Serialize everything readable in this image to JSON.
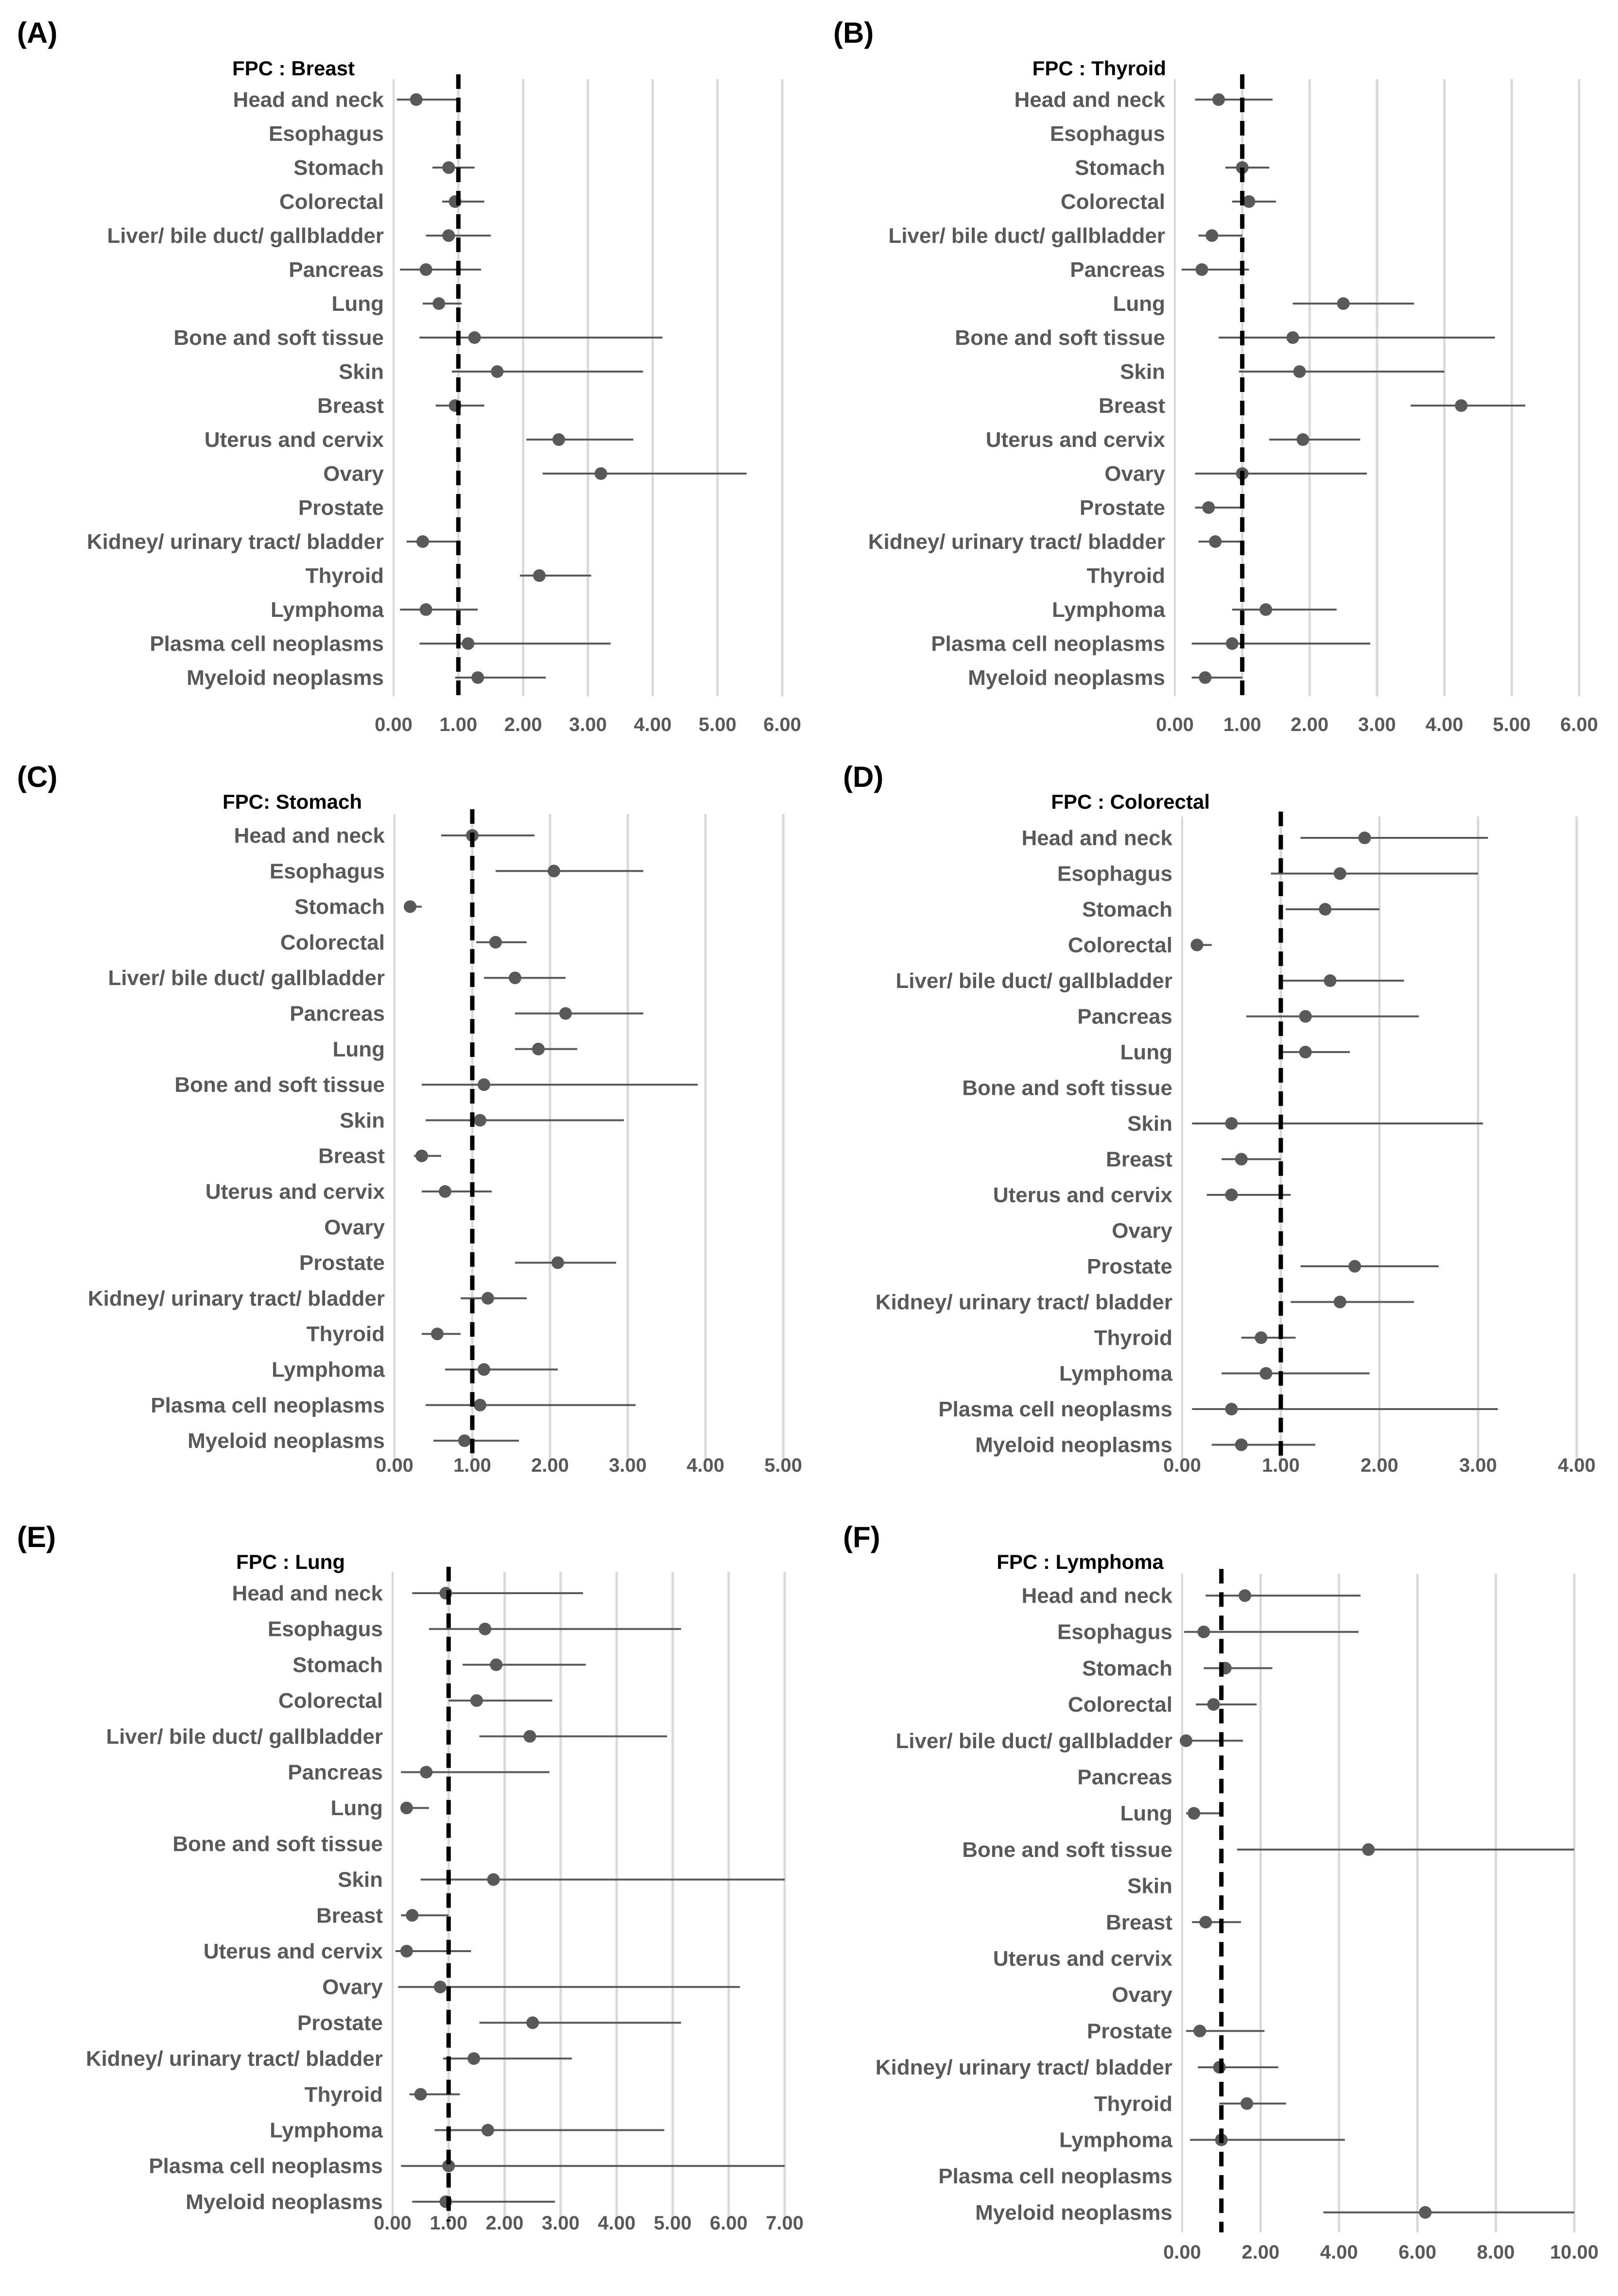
{
  "categories": [
    "Head and neck",
    "Esophagus",
    "Stomach",
    "Colorectal",
    "Liver/ bile duct/ gallbladder",
    "Pancreas",
    "Lung",
    "Bone and soft tissue",
    "Skin",
    "Breast",
    "Uterus and cervix",
    "Ovary",
    "Prostate",
    "Kidney/ urinary tract/ bladder",
    "Thyroid",
    "Lymphoma",
    "Plasma cell neoplasms",
    "Myeloid neoplasms"
  ],
  "chart_data": [
    {
      "type": "forest",
      "panel": "(A)",
      "title": "FPC : Breast",
      "xlim": [
        0,
        6
      ],
      "ticks": [
        0,
        1,
        2,
        3,
        4,
        5,
        6
      ],
      "tick_labels": [
        "0.00",
        "1.00",
        "2.00",
        "3.00",
        "4.00",
        "5.00",
        "6.00"
      ],
      "reference": 1.0,
      "points": [
        {
          "label": "Head and neck",
          "est": 0.35,
          "lo": 0.05,
          "hi": 1.0
        },
        {
          "label": "Esophagus",
          "est": null,
          "lo": null,
          "hi": null
        },
        {
          "label": "Stomach",
          "est": 0.85,
          "lo": 0.6,
          "hi": 1.25
        },
        {
          "label": "Colorectal",
          "est": 0.95,
          "lo": 0.75,
          "hi": 1.4
        },
        {
          "label": "Liver/ bile duct/ gallbladder",
          "est": 0.85,
          "lo": 0.5,
          "hi": 1.5
        },
        {
          "label": "Pancreas",
          "est": 0.5,
          "lo": 0.1,
          "hi": 1.35
        },
        {
          "label": "Lung",
          "est": 0.7,
          "lo": 0.45,
          "hi": 1.05
        },
        {
          "label": "Bone and soft tissue",
          "est": 1.25,
          "lo": 0.4,
          "hi": 4.15
        },
        {
          "label": "Skin",
          "est": 1.6,
          "lo": 0.9,
          "hi": 3.85
        },
        {
          "label": "Breast",
          "est": 0.95,
          "lo": 0.65,
          "hi": 1.4
        },
        {
          "label": "Uterus and cervix",
          "est": 2.55,
          "lo": 2.05,
          "hi": 3.7
        },
        {
          "label": "Ovary",
          "est": 3.2,
          "lo": 2.3,
          "hi": 5.45
        },
        {
          "label": "Prostate",
          "est": null,
          "lo": null,
          "hi": null
        },
        {
          "label": "Kidney/ urinary tract/ bladder",
          "est": 0.45,
          "lo": 0.2,
          "hi": 1.0
        },
        {
          "label": "Thyroid",
          "est": 2.25,
          "lo": 1.95,
          "hi": 3.05
        },
        {
          "label": "Lymphoma",
          "est": 0.5,
          "lo": 0.1,
          "hi": 1.3
        },
        {
          "label": "Plasma cell neoplasms",
          "est": 1.15,
          "lo": 0.4,
          "hi": 3.35
        },
        {
          "label": "Myeloid neoplasms",
          "est": 1.3,
          "lo": 0.95,
          "hi": 2.35
        }
      ]
    },
    {
      "type": "forest",
      "panel": "(B)",
      "title": "FPC : Thyroid",
      "xlim": [
        0,
        6
      ],
      "ticks": [
        0,
        1,
        2,
        3,
        4,
        5,
        6
      ],
      "tick_labels": [
        "0.00",
        "1.00",
        "2.00",
        "3.00",
        "4.00",
        "5.00",
        "6.00"
      ],
      "reference": 1.0,
      "points": [
        {
          "label": "Head and neck",
          "est": 0.65,
          "lo": 0.3,
          "hi": 1.45
        },
        {
          "label": "Esophagus",
          "est": null,
          "lo": null,
          "hi": null
        },
        {
          "label": "Stomach",
          "est": 1.0,
          "lo": 0.75,
          "hi": 1.4
        },
        {
          "label": "Colorectal",
          "est": 1.1,
          "lo": 0.85,
          "hi": 1.5
        },
        {
          "label": "Liver/ bile duct/ gallbladder",
          "est": 0.55,
          "lo": 0.35,
          "hi": 1.0
        },
        {
          "label": "Pancreas",
          "est": 0.4,
          "lo": 0.1,
          "hi": 1.1
        },
        {
          "label": "Lung",
          "est": 2.5,
          "lo": 1.75,
          "hi": 3.55
        },
        {
          "label": "Bone and soft tissue",
          "est": 1.75,
          "lo": 0.65,
          "hi": 4.75
        },
        {
          "label": "Skin",
          "est": 1.85,
          "lo": 0.95,
          "hi": 4.0
        },
        {
          "label": "Breast",
          "est": 4.25,
          "lo": 3.5,
          "hi": 5.2
        },
        {
          "label": "Uterus and cervix",
          "est": 1.9,
          "lo": 1.4,
          "hi": 2.75
        },
        {
          "label": "Ovary",
          "est": 1.0,
          "lo": 0.3,
          "hi": 2.85
        },
        {
          "label": "Prostate",
          "est": 0.5,
          "lo": 0.3,
          "hi": 1.0
        },
        {
          "label": "Kidney/ urinary tract/ bladder",
          "est": 0.6,
          "lo": 0.35,
          "hi": 1.0
        },
        {
          "label": "Thyroid",
          "est": null,
          "lo": null,
          "hi": null
        },
        {
          "label": "Lymphoma",
          "est": 1.35,
          "lo": 0.85,
          "hi": 2.4
        },
        {
          "label": "Plasma cell neoplasms",
          "est": 0.85,
          "lo": 0.25,
          "hi": 2.9
        },
        {
          "label": "Myeloid neoplasms",
          "est": 0.45,
          "lo": 0.25,
          "hi": 1.0
        }
      ]
    },
    {
      "type": "forest",
      "panel": "(C)",
      "title": "FPC: Stomach",
      "xlim": [
        0,
        5
      ],
      "ticks": [
        0,
        1,
        2,
        3,
        4,
        5
      ],
      "tick_labels": [
        "0.00",
        "1.00",
        "2.00",
        "3.00",
        "4.00",
        "5.00"
      ],
      "reference": 1.0,
      "points": [
        {
          "label": "Head and neck",
          "est": 1.0,
          "lo": 0.6,
          "hi": 1.8
        },
        {
          "label": "Esophagus",
          "est": 2.05,
          "lo": 1.3,
          "hi": 3.2
        },
        {
          "label": "Stomach",
          "est": 0.2,
          "lo": 0.15,
          "hi": 0.35
        },
        {
          "label": "Colorectal",
          "est": 1.3,
          "lo": 1.05,
          "hi": 1.7
        },
        {
          "label": "Liver/ bile duct/ gallbladder",
          "est": 1.55,
          "lo": 1.15,
          "hi": 2.2
        },
        {
          "label": "Pancreas",
          "est": 2.2,
          "lo": 1.55,
          "hi": 3.2
        },
        {
          "label": "Lung",
          "est": 1.85,
          "lo": 1.55,
          "hi": 2.35
        },
        {
          "label": "Bone and soft tissue",
          "est": 1.15,
          "lo": 0.35,
          "hi": 3.9
        },
        {
          "label": "Skin",
          "est": 1.1,
          "lo": 0.4,
          "hi": 2.95
        },
        {
          "label": "Breast",
          "est": 0.35,
          "lo": 0.25,
          "hi": 0.6
        },
        {
          "label": "Uterus and cervix",
          "est": 0.65,
          "lo": 0.35,
          "hi": 1.25
        },
        {
          "label": "Ovary",
          "est": null,
          "lo": null,
          "hi": null
        },
        {
          "label": "Prostate",
          "est": 2.1,
          "lo": 1.55,
          "hi": 2.85
        },
        {
          "label": "Kidney/ urinary tract/ bladder",
          "est": 1.2,
          "lo": 0.85,
          "hi": 1.7
        },
        {
          "label": "Thyroid",
          "est": 0.55,
          "lo": 0.35,
          "hi": 0.85
        },
        {
          "label": "Lymphoma",
          "est": 1.15,
          "lo": 0.65,
          "hi": 2.1
        },
        {
          "label": "Plasma cell neoplasms",
          "est": 1.1,
          "lo": 0.4,
          "hi": 3.1
        },
        {
          "label": "Myeloid neoplasms",
          "est": 0.9,
          "lo": 0.5,
          "hi": 1.6
        }
      ]
    },
    {
      "type": "forest",
      "panel": "(D)",
      "title": "FPC : Colorectal",
      "xlim": [
        0,
        4
      ],
      "ticks": [
        0,
        1,
        2,
        3,
        4
      ],
      "tick_labels": [
        "0.00",
        "1.00",
        "2.00",
        "3.00",
        "4.00"
      ],
      "reference": 1.0,
      "points": [
        {
          "label": "Head and neck",
          "est": 1.85,
          "lo": 1.2,
          "hi": 3.1
        },
        {
          "label": "Esophagus",
          "est": 1.6,
          "lo": 0.9,
          "hi": 3.0
        },
        {
          "label": "Stomach",
          "est": 1.45,
          "lo": 1.05,
          "hi": 2.0
        },
        {
          "label": "Colorectal",
          "est": 0.15,
          "lo": 0.1,
          "hi": 0.3
        },
        {
          "label": "Liver/ bile duct/ gallbladder",
          "est": 1.5,
          "lo": 1.0,
          "hi": 2.25
        },
        {
          "label": "Pancreas",
          "est": 1.25,
          "lo": 0.65,
          "hi": 2.4
        },
        {
          "label": "Lung",
          "est": 1.25,
          "lo": 1.0,
          "hi": 1.7
        },
        {
          "label": "Bone and soft tissue",
          "est": null,
          "lo": null,
          "hi": null
        },
        {
          "label": "Skin",
          "est": 0.5,
          "lo": 0.1,
          "hi": 3.05
        },
        {
          "label": "Breast",
          "est": 0.6,
          "lo": 0.4,
          "hi": 1.0
        },
        {
          "label": "Uterus and cervix",
          "est": 0.5,
          "lo": 0.25,
          "hi": 1.1
        },
        {
          "label": "Ovary",
          "est": null,
          "lo": null,
          "hi": null
        },
        {
          "label": "Prostate",
          "est": 1.75,
          "lo": 1.2,
          "hi": 2.6
        },
        {
          "label": "Kidney/ urinary tract/ bladder",
          "est": 1.6,
          "lo": 1.1,
          "hi": 2.35
        },
        {
          "label": "Thyroid",
          "est": 0.8,
          "lo": 0.6,
          "hi": 1.15
        },
        {
          "label": "Lymphoma",
          "est": 0.85,
          "lo": 0.4,
          "hi": 1.9
        },
        {
          "label": "Plasma cell neoplasms",
          "est": 0.5,
          "lo": 0.1,
          "hi": 3.2
        },
        {
          "label": "Myeloid neoplasms",
          "est": 0.6,
          "lo": 0.3,
          "hi": 1.35
        }
      ]
    },
    {
      "type": "forest",
      "panel": "(E)",
      "title": "FPC : Lung",
      "xlim": [
        0,
        7
      ],
      "ticks": [
        0,
        1,
        2,
        3,
        4,
        5,
        6,
        7
      ],
      "tick_labels": [
        "0.00",
        "1.00",
        "2.00",
        "3.00",
        "4.00",
        "5.00",
        "6.00",
        "7.00"
      ],
      "reference": 1.0,
      "points": [
        {
          "label": "Head and neck",
          "est": 0.95,
          "lo": 0.35,
          "hi": 3.4
        },
        {
          "label": "Esophagus",
          "est": 1.65,
          "lo": 0.65,
          "hi": 5.15
        },
        {
          "label": "Stomach",
          "est": 1.85,
          "lo": 1.25,
          "hi": 3.45
        },
        {
          "label": "Colorectal",
          "est": 1.5,
          "lo": 1.0,
          "hi": 2.85
        },
        {
          "label": "Liver/ bile duct/ gallbladder",
          "est": 2.45,
          "lo": 1.55,
          "hi": 4.9
        },
        {
          "label": "Pancreas",
          "est": 0.6,
          "lo": 0.15,
          "hi": 2.8
        },
        {
          "label": "Lung",
          "est": 0.25,
          "lo": 0.15,
          "hi": 0.65
        },
        {
          "label": "Bone and soft tissue",
          "est": null,
          "lo": null,
          "hi": null
        },
        {
          "label": "Skin",
          "est": 1.8,
          "lo": 0.5,
          "hi": 7.0
        },
        {
          "label": "Breast",
          "est": 0.35,
          "lo": 0.15,
          "hi": 1.0
        },
        {
          "label": "Uterus and cervix",
          "est": 0.25,
          "lo": 0.05,
          "hi": 1.4
        },
        {
          "label": "Ovary",
          "est": 0.85,
          "lo": 0.1,
          "hi": 6.2
        },
        {
          "label": "Prostate",
          "est": 2.5,
          "lo": 1.55,
          "hi": 5.15
        },
        {
          "label": "Kidney/ urinary tract/ bladder",
          "est": 1.45,
          "lo": 0.9,
          "hi": 3.2
        },
        {
          "label": "Thyroid",
          "est": 0.5,
          "lo": 0.3,
          "hi": 1.2
        },
        {
          "label": "Lymphoma",
          "est": 1.7,
          "lo": 0.75,
          "hi": 4.85
        },
        {
          "label": "Plasma cell neoplasms",
          "est": 1.0,
          "lo": 0.15,
          "hi": 7.0
        },
        {
          "label": "Myeloid neoplasms",
          "est": 0.95,
          "lo": 0.35,
          "hi": 2.9
        }
      ]
    },
    {
      "type": "forest",
      "panel": "(F)",
      "title": "FPC : Lymphoma",
      "xlim": [
        0,
        10
      ],
      "ticks": [
        0,
        2,
        4,
        6,
        8,
        10
      ],
      "tick_labels": [
        "0.00",
        "2.00",
        "4.00",
        "6.00",
        "8.00",
        "10.00"
      ],
      "reference": 1.0,
      "points": [
        {
          "label": "Head and neck",
          "est": 1.6,
          "lo": 0.6,
          "hi": 4.55
        },
        {
          "label": "Esophagus",
          "est": 0.55,
          "lo": 0.05,
          "hi": 4.5
        },
        {
          "label": "Stomach",
          "est": 1.1,
          "lo": 0.55,
          "hi": 2.3
        },
        {
          "label": "Colorectal",
          "est": 0.8,
          "lo": 0.35,
          "hi": 1.9
        },
        {
          "label": "Liver/ bile duct/ gallbladder",
          "est": 0.1,
          "lo": 0.05,
          "hi": 1.55
        },
        {
          "label": "Pancreas",
          "est": null,
          "lo": null,
          "hi": null
        },
        {
          "label": "Lung",
          "est": 0.3,
          "lo": 0.1,
          "hi": 0.95
        },
        {
          "label": "Bone and soft tissue",
          "est": 4.75,
          "lo": 1.4,
          "hi": 10.0
        },
        {
          "label": "Skin",
          "est": null,
          "lo": null,
          "hi": null
        },
        {
          "label": "Breast",
          "est": 0.6,
          "lo": 0.25,
          "hi": 1.5
        },
        {
          "label": "Uterus and cervix",
          "est": null,
          "lo": null,
          "hi": null
        },
        {
          "label": "Ovary",
          "est": null,
          "lo": null,
          "hi": null
        },
        {
          "label": "Prostate",
          "est": 0.45,
          "lo": 0.1,
          "hi": 2.1
        },
        {
          "label": "Kidney/ urinary tract/ bladder",
          "est": 0.95,
          "lo": 0.4,
          "hi": 2.45
        },
        {
          "label": "Thyroid",
          "est": 1.65,
          "lo": 0.95,
          "hi": 2.65
        },
        {
          "label": "Lymphoma",
          "est": 1.0,
          "lo": 0.2,
          "hi": 4.15
        },
        {
          "label": "Plasma cell neoplasms",
          "est": null,
          "lo": null,
          "hi": null
        },
        {
          "label": "Myeloid neoplasms",
          "est": 6.2,
          "lo": 3.6,
          "hi": 10.0
        }
      ]
    }
  ]
}
